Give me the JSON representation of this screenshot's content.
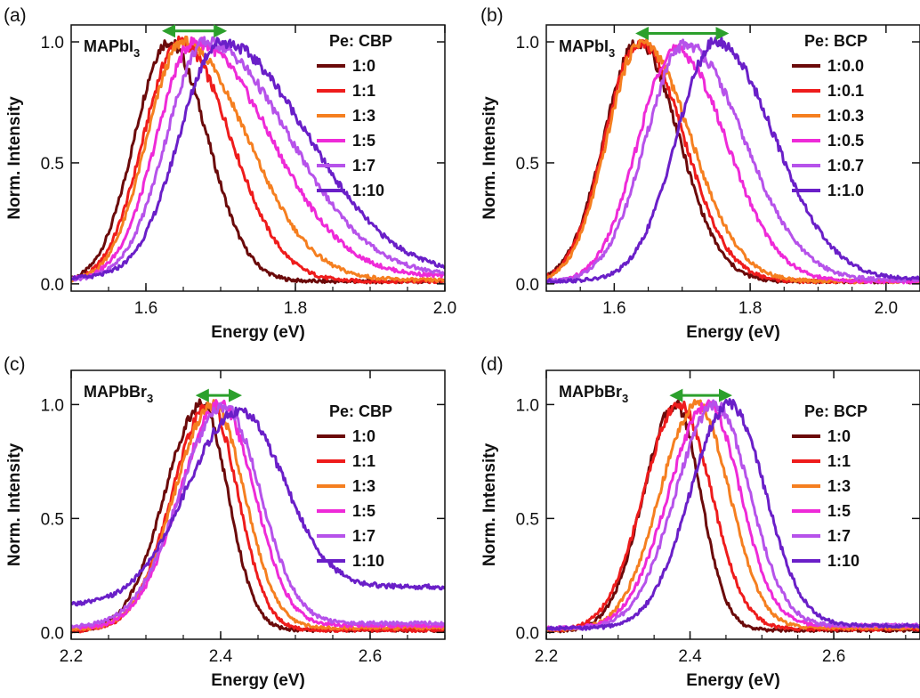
{
  "figure": {
    "shift_arrow_color": "#2ca02c",
    "series_colors": [
      "#6b0a0a",
      "#ee1c1c",
      "#f57f20",
      "#ee2ad8",
      "#b652ea",
      "#6a1fc8"
    ]
  },
  "chart_data": [
    {
      "panel": "(a)",
      "type": "line",
      "sample_label": {
        "base": "MAPbI",
        "sub": "3"
      },
      "xlabel": "Energy (eV)",
      "ylabel": "Norm. Intensity",
      "xlim": [
        1.5,
        2.0
      ],
      "ylim": [
        -0.03,
        1.07
      ],
      "xticks": [
        {
          "v": 1.6,
          "label": "1.6"
        },
        {
          "v": 1.8,
          "label": "1.8"
        },
        {
          "v": 2.0,
          "label": "2.0"
        }
      ],
      "yticks": [
        {
          "v": 0.0,
          "label": "0.0"
        },
        {
          "v": 0.5,
          "label": "0.5"
        },
        {
          "v": 1.0,
          "label": "1.0"
        }
      ],
      "legend_title": "Pe: CBP",
      "legend_position": "top-right",
      "arrow": {
        "from": 1.625,
        "to": 1.705,
        "y": 1.045
      },
      "series": [
        {
          "name": "1:0",
          "peak": 1.63,
          "sigma_left": 0.045,
          "sigma_right": 0.052,
          "baseline": 0.01,
          "peak_value": 1.0
        },
        {
          "name": "1:1",
          "peak": 1.645,
          "sigma_left": 0.048,
          "sigma_right": 0.068,
          "baseline": 0.01,
          "peak_value": 1.0
        },
        {
          "name": "1:3",
          "peak": 1.65,
          "sigma_left": 0.048,
          "sigma_right": 0.085,
          "baseline": 0.015,
          "peak_value": 1.0
        },
        {
          "name": "1:5",
          "peak": 1.665,
          "sigma_left": 0.05,
          "sigma_right": 0.1,
          "baseline": 0.03,
          "peak_value": 1.0
        },
        {
          "name": "1:7",
          "peak": 1.68,
          "sigma_left": 0.052,
          "sigma_right": 0.11,
          "baseline": 0.03,
          "peak_value": 1.0
        },
        {
          "name": "1:10",
          "peak": 1.7,
          "sigma_left": 0.055,
          "sigma_right": 0.115,
          "baseline": 0.04,
          "peak_value": 1.0
        }
      ]
    },
    {
      "panel": "(b)",
      "type": "line",
      "sample_label": {
        "base": "MAPbI",
        "sub": "3"
      },
      "xlabel": "Energy (eV)",
      "ylabel": "Norm. Intensity",
      "xlim": [
        1.5,
        2.05
      ],
      "ylim": [
        -0.03,
        1.07
      ],
      "xticks": [
        {
          "v": 1.6,
          "label": "1.6"
        },
        {
          "v": 1.8,
          "label": "1.8"
        },
        {
          "v": 2.0,
          "label": "2.0"
        }
      ],
      "yticks": [
        {
          "v": 0.0,
          "label": "0.0"
        },
        {
          "v": 0.5,
          "label": "0.5"
        },
        {
          "v": 1.0,
          "label": "1.0"
        }
      ],
      "legend_title": "Pe: BCP",
      "legend_position": "top-right",
      "arrow": {
        "from": 1.635,
        "to": 1.765,
        "y": 1.035
      },
      "series": [
        {
          "name": "1:0.0",
          "peak": 1.635,
          "sigma_left": 0.05,
          "sigma_right": 0.06,
          "baseline": 0.01,
          "peak_value": 1.0
        },
        {
          "name": "1:0.1",
          "peak": 1.637,
          "sigma_left": 0.05,
          "sigma_right": 0.065,
          "baseline": 0.01,
          "peak_value": 1.0
        },
        {
          "name": "1:0.3",
          "peak": 1.64,
          "sigma_left": 0.05,
          "sigma_right": 0.072,
          "baseline": 0.01,
          "peak_value": 1.0
        },
        {
          "name": "1:0.5",
          "peak": 1.69,
          "sigma_left": 0.055,
          "sigma_right": 0.075,
          "baseline": 0.01,
          "peak_value": 0.97
        },
        {
          "name": "1:0.7",
          "peak": 1.705,
          "sigma_left": 0.058,
          "sigma_right": 0.085,
          "baseline": 0.015,
          "peak_value": 0.99
        },
        {
          "name": "1:1.0",
          "peak": 1.75,
          "sigma_left": 0.058,
          "sigma_right": 0.085,
          "baseline": 0.02,
          "peak_value": 1.0
        }
      ]
    },
    {
      "panel": "(c)",
      "type": "line",
      "sample_label": {
        "base": "MAPbBr",
        "sub": "3"
      },
      "xlabel": "Energy (eV)",
      "ylabel": "Norm. Intensity",
      "xlim": [
        2.2,
        2.7
      ],
      "ylim": [
        -0.03,
        1.15
      ],
      "xticks": [
        {
          "v": 2.2,
          "label": "2.2"
        },
        {
          "v": 2.4,
          "label": "2.4"
        },
        {
          "v": 2.6,
          "label": "2.6"
        }
      ],
      "yticks": [
        {
          "v": 0.0,
          "label": "0.0"
        },
        {
          "v": 0.5,
          "label": "0.5"
        },
        {
          "v": 1.0,
          "label": "1.0"
        }
      ],
      "legend_title": "Pe: CBP",
      "legend_position": "right",
      "arrow": {
        "from": 2.37,
        "to": 2.425,
        "y": 1.04
      },
      "series": [
        {
          "name": "1:0",
          "peak": 2.375,
          "sigma_left": 0.05,
          "sigma_right": 0.035,
          "baseline": 0.01,
          "peak_value": 1.0
        },
        {
          "name": "1:1",
          "peak": 2.385,
          "sigma_left": 0.05,
          "sigma_right": 0.038,
          "baseline": 0.01,
          "peak_value": 1.0
        },
        {
          "name": "1:3",
          "peak": 2.39,
          "sigma_left": 0.052,
          "sigma_right": 0.042,
          "baseline": 0.02,
          "peak_value": 1.0
        },
        {
          "name": "1:5",
          "peak": 2.4,
          "sigma_left": 0.055,
          "sigma_right": 0.045,
          "baseline": 0.03,
          "peak_value": 1.0
        },
        {
          "name": "1:7",
          "peak": 2.405,
          "sigma_left": 0.06,
          "sigma_right": 0.048,
          "baseline": 0.04,
          "peak_value": 0.99
        },
        {
          "name": "1:10",
          "peak": 2.425,
          "sigma_left": 0.07,
          "sigma_right": 0.06,
          "baseline": 0.2,
          "peak_value": 0.97
        }
      ]
    },
    {
      "panel": "(d)",
      "type": "line",
      "sample_label": {
        "base": "MAPbBr",
        "sub": "3"
      },
      "xlabel": "Energy (eV)",
      "ylabel": "Norm. Intensity",
      "xlim": [
        2.2,
        2.72
      ],
      "ylim": [
        -0.03,
        1.15
      ],
      "xticks": [
        {
          "v": 2.2,
          "label": "2.2"
        },
        {
          "v": 2.4,
          "label": "2.4"
        },
        {
          "v": 2.6,
          "label": "2.6"
        }
      ],
      "yticks": [
        {
          "v": 0.0,
          "label": "0.0"
        },
        {
          "v": 0.5,
          "label": "0.5"
        },
        {
          "v": 1.0,
          "label": "1.0"
        }
      ],
      "legend_title": "Pe: BCP",
      "legend_position": "right",
      "arrow": {
        "from": 2.375,
        "to": 2.455,
        "y": 1.04
      },
      "series": [
        {
          "name": "1:0",
          "peak": 2.38,
          "sigma_left": 0.045,
          "sigma_right": 0.035,
          "baseline": 0.01,
          "peak_value": 1.0
        },
        {
          "name": "1:1",
          "peak": 2.385,
          "sigma_left": 0.05,
          "sigma_right": 0.045,
          "baseline": 0.015,
          "peak_value": 1.0
        },
        {
          "name": "1:3",
          "peak": 2.41,
          "sigma_left": 0.052,
          "sigma_right": 0.045,
          "baseline": 0.02,
          "peak_value": 1.0
        },
        {
          "name": "1:5",
          "peak": 2.425,
          "sigma_left": 0.055,
          "sigma_right": 0.045,
          "baseline": 0.03,
          "peak_value": 1.0
        },
        {
          "name": "1:7",
          "peak": 2.435,
          "sigma_left": 0.055,
          "sigma_right": 0.048,
          "baseline": 0.03,
          "peak_value": 1.0
        },
        {
          "name": "1:10",
          "peak": 2.455,
          "sigma_left": 0.055,
          "sigma_right": 0.05,
          "baseline": 0.03,
          "peak_value": 1.0
        }
      ]
    }
  ]
}
